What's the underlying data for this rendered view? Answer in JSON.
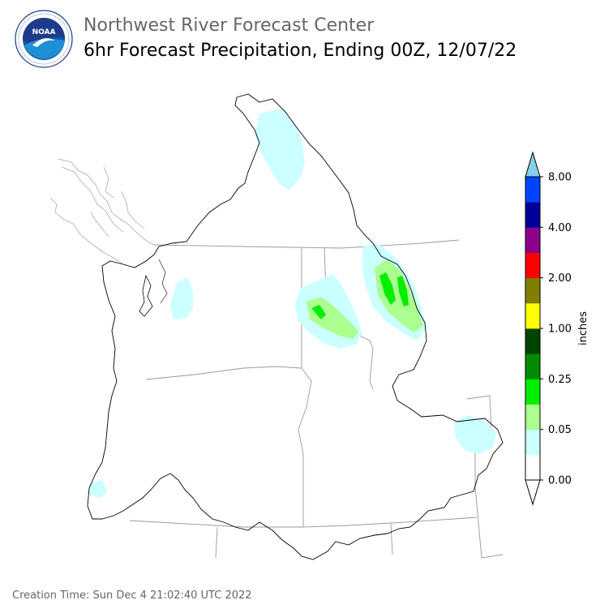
{
  "header": {
    "title": "Northwest River Forecast Center",
    "subtitle": "6hr Forecast Precipitation, Ending 00Z, 12/07/22"
  },
  "logo": {
    "icon": "noaa-logo",
    "text": "NOAA",
    "ring_text": "NATIONAL OCEANIC AND ATMOSPHERIC ADMINISTRATION · U.S. DEPARTMENT OF COMMERCE"
  },
  "map": {
    "region": "Pacific Northwest (Columbia River basin)",
    "state_boundary_color": "#999999",
    "basin_outline_color": "#000000",
    "precip_areas": [
      {
        "label": "0.05",
        "color": "#ccffff"
      },
      {
        "label": "0.10",
        "color": "#aaff8e"
      },
      {
        "label": "0.25",
        "color": "#00ee00"
      }
    ]
  },
  "colorbar": {
    "unit": "inches",
    "tick_labels": [
      "0.00",
      "0.05",
      "0.25",
      "1.00",
      "2.00",
      "4.00",
      "8.00"
    ],
    "bins": [
      {
        "color": "#ffffff"
      },
      {
        "color": "#ccffff"
      },
      {
        "color": "#aaff8e"
      },
      {
        "color": "#00ee00"
      },
      {
        "color": "#008b00"
      },
      {
        "color": "#004400"
      },
      {
        "color": "#ffff00"
      },
      {
        "color": "#7f7f00"
      },
      {
        "color": "#ff0000"
      },
      {
        "color": "#8b008b"
      },
      {
        "color": "#000099"
      },
      {
        "color": "#0044ff"
      }
    ],
    "over_color": "#87ceeb",
    "under_color": "#ffffff"
  },
  "footer": {
    "creation_time": "Creation Time: Sun Dec 4 21:02:40 UTC 2022"
  }
}
